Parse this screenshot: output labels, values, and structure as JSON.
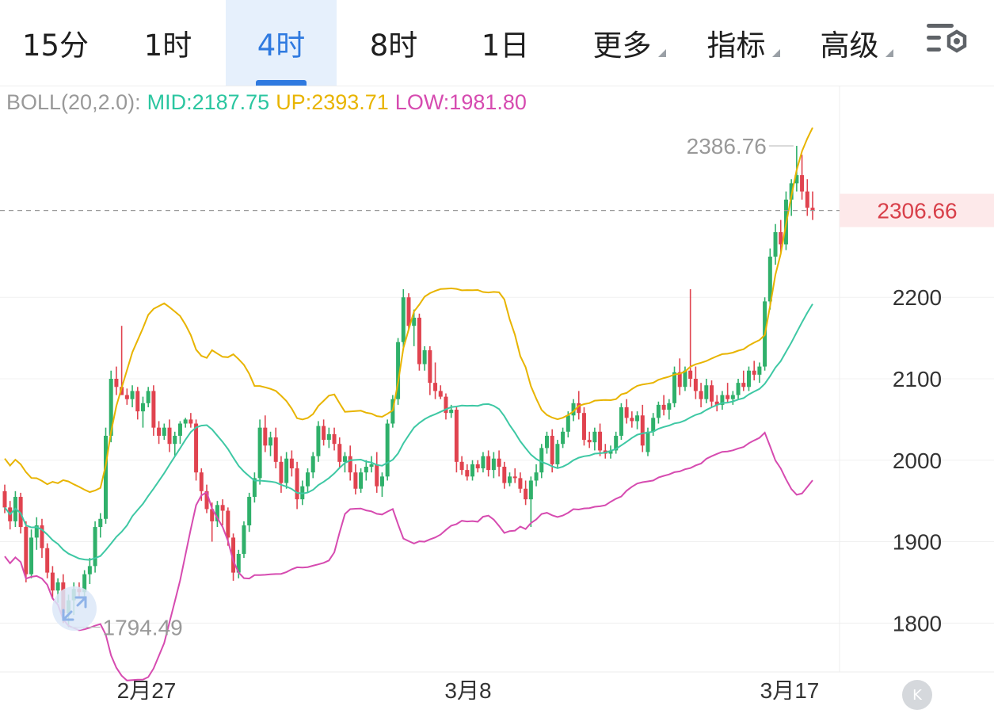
{
  "tabs": [
    {
      "label": "15分"
    },
    {
      "label": "1时"
    },
    {
      "label": "4时"
    },
    {
      "label": "8时"
    },
    {
      "label": "1日"
    },
    {
      "label": "更多"
    },
    {
      "label": "指标"
    },
    {
      "label": "高级"
    }
  ],
  "active_tab": "4时",
  "boll": {
    "name": "BOLL(20,2.0):",
    "mid": "MID:2187.75",
    "up": "UP:2393.71",
    "low": "LOW:1981.80"
  },
  "colors": {
    "up": "#2fb06a",
    "down": "#e0434f",
    "mid_line": "#3ec8a4",
    "upper_line": "#e8b400",
    "lower_line": "#d64bb0",
    "label": "#999999",
    "price_label": "#d8404a",
    "price_bg": "#fde9ea"
  },
  "chart_data": {
    "type": "candlestick",
    "y_axis": {
      "ticks": [
        1800,
        1900,
        2000,
        2100,
        2200
      ],
      "min": 1740,
      "max": 2460
    },
    "x_axis": {
      "labels": [
        "2月27",
        "3月8",
        "3月17"
      ]
    },
    "current_price": "2306.66",
    "high_label": "2386.76",
    "low_label": "1794.49",
    "indicators": {
      "name": "BOLL",
      "period": 20,
      "k": 2.0,
      "mid": 2187.75,
      "up": 2393.71,
      "low": 1981.8
    },
    "candles_ohlc": [
      [
        1962,
        1970,
        1935,
        1942
      ],
      [
        1942,
        1950,
        1915,
        1925
      ],
      [
        1925,
        1962,
        1918,
        1955
      ],
      [
        1955,
        1960,
        1910,
        1918
      ],
      [
        1918,
        1925,
        1850,
        1860
      ],
      [
        1860,
        1915,
        1855,
        1905
      ],
      [
        1905,
        1930,
        1890,
        1920
      ],
      [
        1920,
        1928,
        1880,
        1892
      ],
      [
        1892,
        1898,
        1855,
        1862
      ],
      [
        1862,
        1870,
        1830,
        1840
      ],
      [
        1840,
        1855,
        1825,
        1850
      ],
      [
        1850,
        1860,
        1800,
        1812
      ],
      [
        1812,
        1835,
        1795,
        1828
      ],
      [
        1828,
        1850,
        1810,
        1842
      ],
      [
        1842,
        1850,
        1830,
        1838
      ],
      [
        1838,
        1865,
        1832,
        1860
      ],
      [
        1860,
        1880,
        1848,
        1870
      ],
      [
        1870,
        1925,
        1862,
        1918
      ],
      [
        1918,
        1935,
        1905,
        1928
      ],
      [
        1928,
        2040,
        1922,
        2030
      ],
      [
        2030,
        2110,
        2022,
        2100
      ],
      [
        2100,
        2115,
        2080,
        2090
      ],
      [
        2090,
        2165,
        2082,
        2080
      ],
      [
        2080,
        2088,
        2068,
        2075
      ],
      [
        2075,
        2092,
        2065,
        2085
      ],
      [
        2085,
        2090,
        2050,
        2060
      ],
      [
        2060,
        2078,
        2040,
        2070
      ],
      [
        2070,
        2090,
        2065,
        2085
      ],
      [
        2085,
        2092,
        2030,
        2040
      ],
      [
        2040,
        2048,
        2020,
        2030
      ],
      [
        2030,
        2045,
        2025,
        2040
      ],
      [
        2040,
        2050,
        2010,
        2020
      ],
      [
        2020,
        2035,
        2005,
        2030
      ],
      [
        2030,
        2048,
        2020,
        2045
      ],
      [
        2045,
        2052,
        2040,
        2050
      ],
      [
        2050,
        2058,
        2040,
        2045
      ],
      [
        2045,
        2050,
        1975,
        1985
      ],
      [
        1985,
        1990,
        1950,
        1962
      ],
      [
        1962,
        1970,
        1935,
        1940
      ],
      [
        1940,
        1948,
        1900,
        1925
      ],
      [
        1925,
        1950,
        1918,
        1945
      ],
      [
        1945,
        1952,
        1920,
        1938
      ],
      [
        1938,
        1942,
        1895,
        1905
      ],
      [
        1905,
        1910,
        1852,
        1862
      ],
      [
        1862,
        1890,
        1855,
        1885
      ],
      [
        1885,
        1925,
        1880,
        1920
      ],
      [
        1920,
        1960,
        1912,
        1955
      ],
      [
        1955,
        1985,
        1948,
        1978
      ],
      [
        1978,
        2050,
        1970,
        2040
      ],
      [
        2040,
        2055,
        2010,
        2018
      ],
      [
        2018,
        2035,
        2005,
        2028
      ],
      [
        2028,
        2040,
        1990,
        1998
      ],
      [
        1998,
        2005,
        1960,
        1972
      ],
      [
        1972,
        2010,
        1965,
        2002
      ],
      [
        2002,
        2012,
        1980,
        1990
      ],
      [
        1990,
        1998,
        1940,
        1952
      ],
      [
        1952,
        1975,
        1945,
        1968
      ],
      [
        1968,
        1990,
        1960,
        1985
      ],
      [
        1985,
        2010,
        1978,
        2005
      ],
      [
        2005,
        2048,
        1998,
        2042
      ],
      [
        2042,
        2050,
        2018,
        2025
      ],
      [
        2025,
        2040,
        2015,
        2032
      ],
      [
        2032,
        2040,
        2012,
        2020
      ],
      [
        2020,
        2028,
        1990,
        1998
      ],
      [
        1998,
        2010,
        1985,
        2005
      ],
      [
        2005,
        2018,
        1975,
        1985
      ],
      [
        1985,
        1995,
        1958,
        1965
      ],
      [
        1965,
        1990,
        1960,
        1985
      ],
      [
        1985,
        2000,
        1975,
        1992
      ],
      [
        1992,
        2005,
        1985,
        1995
      ],
      [
        1995,
        2010,
        1960,
        1968
      ],
      [
        1968,
        1985,
        1955,
        1980
      ],
      [
        1980,
        2050,
        1975,
        2045
      ],
      [
        2045,
        2080,
        2040,
        2075
      ],
      [
        2075,
        2150,
        2068,
        2145
      ],
      [
        2145,
        2210,
        2135,
        2200
      ],
      [
        2200,
        2205,
        2160,
        2165
      ],
      [
        2165,
        2185,
        2140,
        2175
      ],
      [
        2175,
        2180,
        2110,
        2118
      ],
      [
        2118,
        2140,
        2110,
        2135
      ],
      [
        2135,
        2140,
        2080,
        2095
      ],
      [
        2095,
        2120,
        2075,
        2085
      ],
      [
        2085,
        2092,
        2075,
        2078
      ],
      [
        2078,
        2082,
        2050,
        2058
      ],
      [
        2058,
        2068,
        2052,
        2062
      ],
      [
        2062,
        2065,
        1985,
        1998
      ],
      [
        1998,
        2005,
        1982,
        1988
      ],
      [
        1988,
        1995,
        1975,
        1980
      ],
      [
        1980,
        2000,
        1975,
        1995
      ],
      [
        1995,
        2000,
        1985,
        1990
      ],
      [
        1990,
        2010,
        1985,
        2005
      ],
      [
        2005,
        2012,
        1980,
        1988
      ],
      [
        1988,
        2010,
        1978,
        2002
      ],
      [
        2002,
        2012,
        1980,
        1992
      ],
      [
        1992,
        1998,
        1965,
        1972
      ],
      [
        1972,
        1985,
        1968,
        1980
      ],
      [
        1980,
        1990,
        1972,
        1978
      ],
      [
        1978,
        1985,
        1960,
        1965
      ],
      [
        1965,
        1975,
        1945,
        1952
      ],
      [
        1952,
        1980,
        1918,
        1975
      ],
      [
        1975,
        1995,
        1968,
        1985
      ],
      [
        1985,
        2020,
        1978,
        2015
      ],
      [
        2015,
        2035,
        2008,
        2030
      ],
      [
        2030,
        2038,
        1985,
        1995
      ],
      [
        1995,
        2025,
        1990,
        2020
      ],
      [
        2020,
        2040,
        2015,
        2035
      ],
      [
        2035,
        2060,
        2028,
        2055
      ],
      [
        2055,
        2075,
        2048,
        2070
      ],
      [
        2070,
        2085,
        2050,
        2058
      ],
      [
        2058,
        2065,
        2018,
        2025
      ],
      [
        2025,
        2035,
        2015,
        2022
      ],
      [
        2022,
        2040,
        2012,
        2035
      ],
      [
        2035,
        2045,
        2005,
        2012
      ],
      [
        2012,
        2020,
        2002,
        2008
      ],
      [
        2008,
        2018,
        2002,
        2012
      ],
      [
        2012,
        2035,
        2008,
        2030
      ],
      [
        2030,
        2070,
        2025,
        2065
      ],
      [
        2065,
        2075,
        2045,
        2052
      ],
      [
        2052,
        2060,
        2040,
        2048
      ],
      [
        2048,
        2060,
        2038,
        2055
      ],
      [
        2055,
        2068,
        2010,
        2018
      ],
      [
        2010,
        2040,
        2005,
        2035
      ],
      [
        2035,
        2058,
        2030,
        2052
      ],
      [
        2052,
        2072,
        2045,
        2068
      ],
      [
        2068,
        2080,
        2055,
        2062
      ],
      [
        2062,
        2075,
        2050,
        2070
      ],
      [
        2070,
        2115,
        2065,
        2108
      ],
      [
        2108,
        2125,
        2080,
        2090
      ],
      [
        2090,
        2115,
        2085,
        2110
      ],
      [
        2110,
        2210,
        2090,
        2100
      ],
      [
        2100,
        2115,
        2075,
        2085
      ],
      [
        2085,
        2095,
        2065,
        2075
      ],
      [
        2075,
        2100,
        2070,
        2092
      ],
      [
        2092,
        2098,
        2065,
        2072
      ],
      [
        2072,
        2080,
        2060,
        2068
      ],
      [
        2068,
        2085,
        2062,
        2080
      ],
      [
        2080,
        2095,
        2070,
        2075
      ],
      [
        2075,
        2085,
        2068,
        2080
      ],
      [
        2080,
        2100,
        2075,
        2095
      ],
      [
        2095,
        2110,
        2085,
        2090
      ],
      [
        2090,
        2115,
        2085,
        2110
      ],
      [
        2110,
        2122,
        2098,
        2105
      ],
      [
        2105,
        2120,
        2095,
        2115
      ],
      [
        2115,
        2200,
        2110,
        2195
      ],
      [
        2195,
        2260,
        2185,
        2250
      ],
      [
        2250,
        2290,
        2240,
        2280
      ],
      [
        2280,
        2295,
        2255,
        2265
      ],
      [
        2265,
        2330,
        2258,
        2320
      ],
      [
        2320,
        2345,
        2300,
        2340
      ],
      [
        2340,
        2386,
        2330,
        2350
      ],
      [
        2350,
        2375,
        2320,
        2330
      ],
      [
        2330,
        2345,
        2300,
        2310
      ],
      [
        2310,
        2330,
        2295,
        2306.66
      ]
    ]
  }
}
